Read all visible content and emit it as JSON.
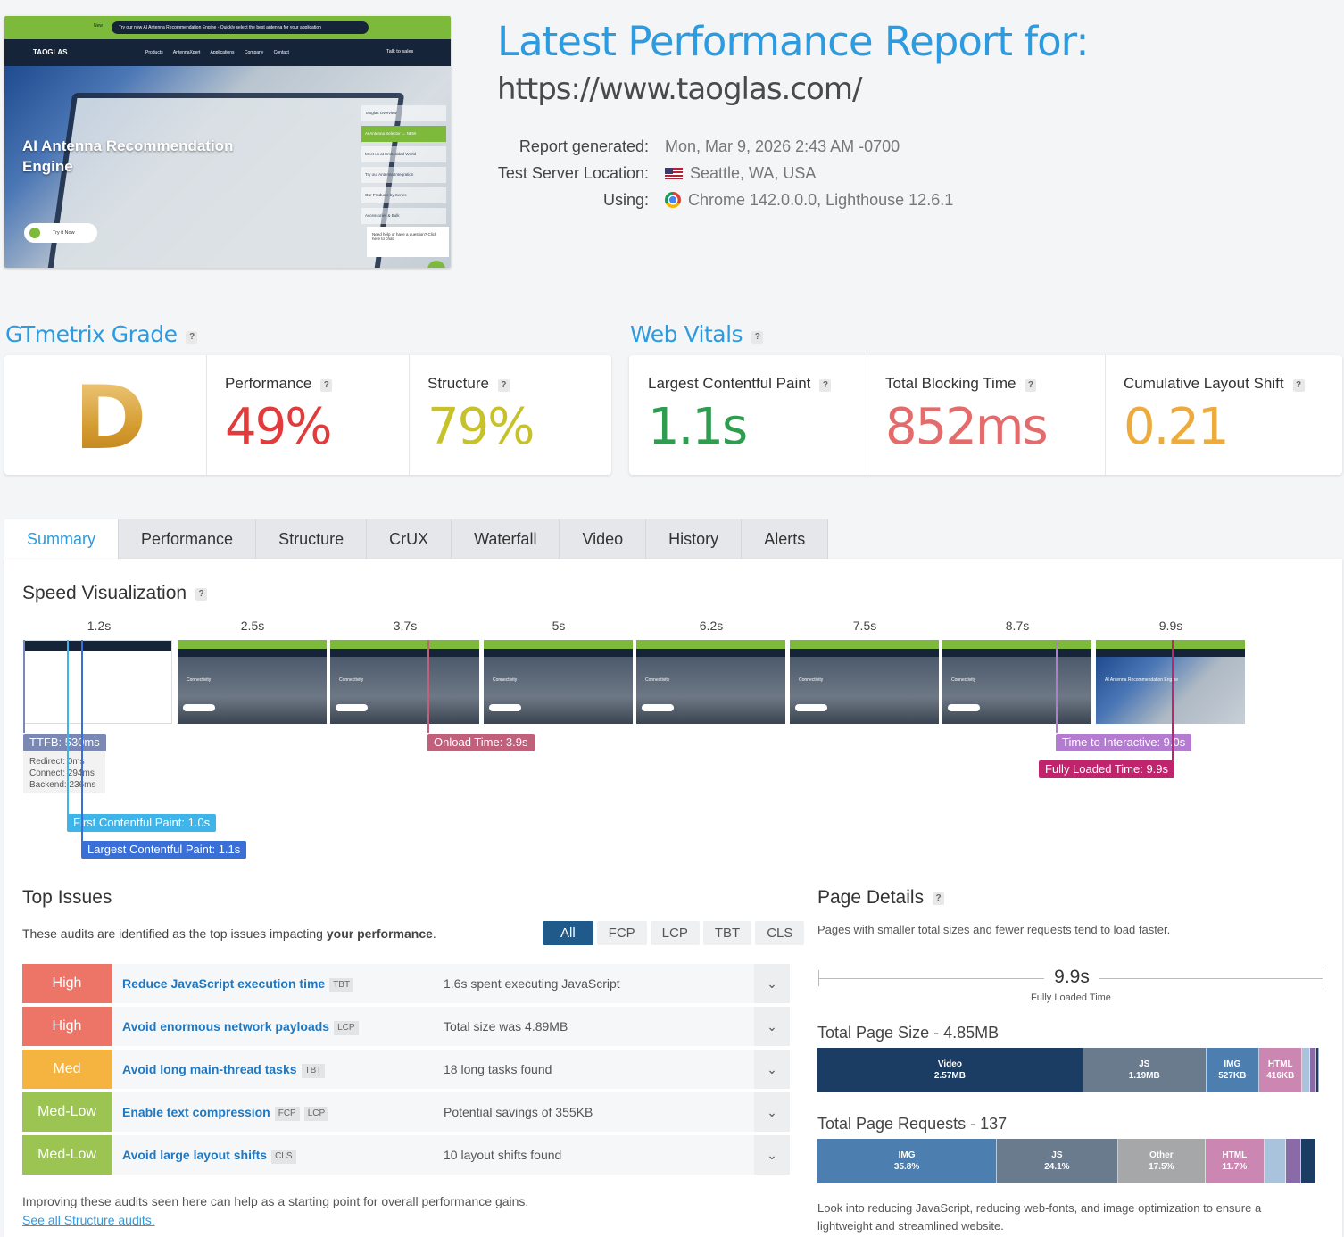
{
  "header": {
    "title": "Latest Performance Report for:",
    "url": "https://www.taoglas.com/",
    "report_generated_label": "Report generated:",
    "report_generated_value": "Mon, Mar 9, 2026 2:43 AM -0700",
    "server_location_label": "Test Server Location:",
    "server_location_value": "Seattle, WA, USA",
    "using_label": "Using:",
    "using_value": "Chrome 142.0.0.0, Lighthouse 12.6.1"
  },
  "screenshot": {
    "top_new": "New",
    "top_banner": "Try our new AI Antenna Recommendation Engine - Quickly select the best antenna for your application",
    "logo": "TAOGLAS",
    "nav_menu": "Products AntennaXpert Applications Company Contact",
    "talk_to_sales": "Talk to sales",
    "hero_title": "AI Antenna Recommendation Engine",
    "hero_button": "Try it Now",
    "side_items": [
      "Taoglas Overview",
      "AI Antenna Selector → NEW",
      "Meet us at Embedded World",
      "Try our Antenna Integration",
      "Our Products by Series",
      "Accessories & Bulk"
    ],
    "chat_text": "Need help or have a question? Click here to chat."
  },
  "grade": {
    "heading": "GTmetrix Grade",
    "letter": "D",
    "performance_label": "Performance",
    "performance_value": "49%",
    "structure_label": "Structure",
    "structure_value": "79%"
  },
  "vitals": {
    "heading": "Web Vitals",
    "lcp_label": "Largest Contentful Paint",
    "lcp_value": "1.1s",
    "tbt_label": "Total Blocking Time",
    "tbt_value": "852ms",
    "cls_label": "Cumulative Layout Shift",
    "cls_value": "0.21"
  },
  "colors": {
    "accent": "#2d9be0",
    "performance": "#e23b3b",
    "structure": "#c7c22a",
    "lcp": "#2e9d4f",
    "tbt": "#e46b6b",
    "cls": "#eeab3d"
  },
  "tabs": [
    "Summary",
    "Performance",
    "Structure",
    "CrUX",
    "Waterfall",
    "Video",
    "History",
    "Alerts"
  ],
  "speed": {
    "heading": "Speed Visualization",
    "times": [
      "1.2s",
      "2.5s",
      "3.7s",
      "5s",
      "6.2s",
      "7.5s",
      "8.7s",
      "9.9s"
    ],
    "frame_text": "Connectivity",
    "last_frame_text": "AI Antenna Recommendation Engine",
    "ttfb": "TTFB: 530ms",
    "redirect": "Redirect: 0ms",
    "connect": "Connect: 294ms",
    "backend": "Backend: 236ms",
    "onload": "Onload Time: 3.9s",
    "tti": "Time to Interactive: 9.0s",
    "fully_loaded": "Fully Loaded Time: 9.9s",
    "fcp": "First Contentful Paint: 1.0s",
    "lcp": "Largest Contentful Paint: 1.1s"
  },
  "issues": {
    "heading": "Top Issues",
    "intro_prefix": "These audits are identified as the top issues impacting ",
    "intro_bold": "your performance",
    "intro_suffix": ".",
    "filters": [
      "All",
      "FCP",
      "LCP",
      "TBT",
      "CLS"
    ],
    "rows": [
      {
        "severity": "High",
        "color": "#ec7568",
        "name": "Reduce JavaScript execution time",
        "tags": [
          "TBT"
        ],
        "desc": "1.6s spent executing JavaScript"
      },
      {
        "severity": "High",
        "color": "#ec7568",
        "name": "Avoid enormous network payloads",
        "tags": [
          "LCP"
        ],
        "desc": "Total size was 4.89MB"
      },
      {
        "severity": "Med",
        "color": "#f4b43f",
        "name": "Avoid long main-thread tasks",
        "tags": [
          "TBT"
        ],
        "desc": "18 long tasks found"
      },
      {
        "severity": "Med-Low",
        "color": "#9cc452",
        "name": "Enable text compression",
        "tags": [
          "FCP",
          "LCP"
        ],
        "desc": "Potential savings of 355KB"
      },
      {
        "severity": "Med-Low",
        "color": "#9cc452",
        "name": "Avoid large layout shifts",
        "tags": [
          "CLS"
        ],
        "desc": "10 layout shifts found"
      }
    ],
    "footer": "Improving these audits seen here can help as a starting point for overall performance gains.",
    "link": "See all Structure audits."
  },
  "page_details": {
    "heading": "Page Details",
    "intro": "Pages with smaller total sizes and fewer requests tend to load faster.",
    "fully_loaded_value": "9.9s",
    "fully_loaded_label": "Fully Loaded Time",
    "size_heading": "Total Page Size - 4.85MB",
    "size_segments": [
      {
        "label": "Video",
        "value": "2.57MB",
        "share": 0.53,
        "color": "#1b3d63"
      },
      {
        "label": "JS",
        "value": "1.19MB",
        "share": 0.245,
        "color": "#6b7b8e"
      },
      {
        "label": "IMG",
        "value": "527KB",
        "share": 0.106,
        "color": "#4c7fb0"
      },
      {
        "label": "HTML",
        "value": "416KB",
        "share": 0.086,
        "color": "#cc86b2"
      },
      {
        "label": "",
        "value": "",
        "share": 0.015,
        "color": "#a9c3dd"
      },
      {
        "label": "",
        "value": "",
        "share": 0.012,
        "color": "#8b6aa8"
      },
      {
        "label": "",
        "value": "",
        "share": 0.006,
        "color": "#1b3d63"
      }
    ],
    "requests_heading": "Total Page Requests - 137",
    "request_segments": [
      {
        "label": "IMG",
        "value": "35.8%",
        "share": 0.358,
        "color": "#4c7fb0"
      },
      {
        "label": "JS",
        "value": "24.1%",
        "share": 0.241,
        "color": "#6b7b8e"
      },
      {
        "label": "Other",
        "value": "17.5%",
        "share": 0.175,
        "color": "#a5a7a9"
      },
      {
        "label": "HTML",
        "value": "11.7%",
        "share": 0.117,
        "color": "#cc86b2"
      },
      {
        "label": "",
        "value": "",
        "share": 0.044,
        "color": "#a9c3dd"
      },
      {
        "label": "",
        "value": "",
        "share": 0.029,
        "color": "#8b6aa8"
      },
      {
        "label": "",
        "value": "",
        "share": 0.029,
        "color": "#1b3d63"
      }
    ],
    "footer": "Look into reducing JavaScript, reducing web-fonts, and image optimization to ensure a lightweight and streamlined website."
  }
}
